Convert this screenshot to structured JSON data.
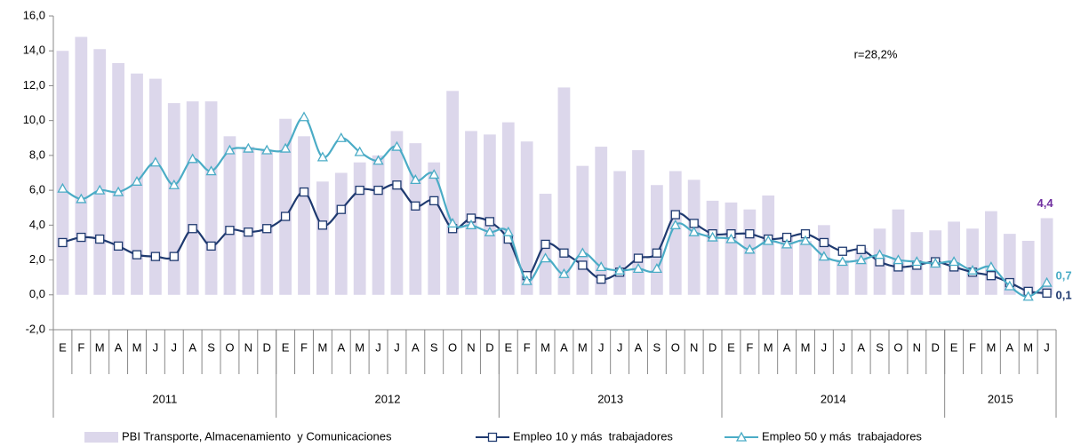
{
  "chart_data": {
    "type": "bar",
    "annotation": "r=28,2%",
    "categories": [
      "E",
      "F",
      "M",
      "A",
      "M",
      "J",
      "J",
      "A",
      "S",
      "O",
      "N",
      "D",
      "E",
      "F",
      "M",
      "A",
      "M",
      "J",
      "J",
      "A",
      "S",
      "O",
      "N",
      "D",
      "E",
      "F",
      "M",
      "A",
      "M",
      "J",
      "J",
      "A",
      "S",
      "O",
      "N",
      "D",
      "E",
      "F",
      "M",
      "A",
      "M",
      "J",
      "J",
      "A",
      "S",
      "O",
      "N",
      "D",
      "E",
      "F",
      "M",
      "A",
      "M",
      "J"
    ],
    "groups": [
      {
        "label": "2011",
        "months": 12
      },
      {
        "label": "2012",
        "months": 12
      },
      {
        "label": "2013",
        "months": 12
      },
      {
        "label": "2014",
        "months": 12
      },
      {
        "label": "2015",
        "months": 6
      }
    ],
    "ylim": [
      -2,
      16
    ],
    "yticks": [
      {
        "value": -2,
        "label": "-2,0"
      },
      {
        "value": 0,
        "label": "0,0"
      },
      {
        "value": 2,
        "label": "2,0"
      },
      {
        "value": 4,
        "label": "4,0"
      },
      {
        "value": 6,
        "label": "6,0"
      },
      {
        "value": 8,
        "label": "8,0"
      },
      {
        "value": 10,
        "label": "10,0"
      },
      {
        "value": 12,
        "label": "12,0"
      },
      {
        "value": 14,
        "label": "14,0"
      },
      {
        "value": 16,
        "label": "16,0"
      }
    ],
    "grid": false,
    "legend": "bottom",
    "series": [
      {
        "name": "PBI Transporte, Almacenamiento  y Comunicaciones",
        "type": "bar",
        "color": "#dcd7eb",
        "label_color": "#7030a0",
        "values": [
          14.0,
          14.8,
          14.1,
          13.3,
          12.7,
          12.4,
          11.0,
          11.1,
          11.1,
          9.1,
          8.5,
          8.3,
          10.1,
          9.1,
          6.5,
          7.0,
          7.6,
          8.0,
          9.4,
          8.7,
          7.6,
          11.7,
          9.4,
          9.2,
          9.9,
          8.8,
          5.8,
          11.9,
          7.4,
          8.5,
          7.1,
          8.3,
          6.3,
          7.1,
          6.6,
          5.4,
          5.3,
          4.9,
          5.7,
          3.4,
          3.1,
          4.0,
          2.0,
          2.7,
          3.8,
          4.9,
          3.6,
          3.7,
          4.2,
          3.8,
          4.8,
          3.5,
          3.1,
          4.4
        ],
        "value_labels": {
          "53": "4,4"
        }
      },
      {
        "name": "Empleo 10 y más  trabajadores",
        "type": "line",
        "marker": "square",
        "color": "#1f3a70",
        "label_color": "#1f3a70",
        "values": [
          3.0,
          3.3,
          3.2,
          2.8,
          2.3,
          2.2,
          2.2,
          3.8,
          2.8,
          3.7,
          3.6,
          3.8,
          4.5,
          5.9,
          4.0,
          4.9,
          6.0,
          6.0,
          6.3,
          5.1,
          5.4,
          3.8,
          4.4,
          4.2,
          3.2,
          1.1,
          2.9,
          2.4,
          1.7,
          0.9,
          1.3,
          2.1,
          2.4,
          4.6,
          4.1,
          3.5,
          3.5,
          3.5,
          3.2,
          3.3,
          3.5,
          3.0,
          2.5,
          2.6,
          1.9,
          1.6,
          1.7,
          1.9,
          1.6,
          1.3,
          1.1,
          0.7,
          0.2,
          0.1
        ],
        "value_labels": {
          "53": "0,1"
        }
      },
      {
        "name": "Empleo 50 y más  trabajadores",
        "type": "line",
        "marker": "triangle",
        "color": "#4bacc6",
        "label_color": "#4bacc6",
        "values": [
          6.1,
          5.5,
          6.0,
          5.9,
          6.5,
          7.6,
          6.3,
          7.8,
          7.1,
          8.3,
          8.4,
          8.3,
          8.4,
          10.2,
          7.9,
          9.0,
          8.2,
          7.7,
          8.5,
          6.6,
          6.9,
          4.1,
          4.0,
          3.6,
          3.6,
          0.8,
          2.1,
          1.2,
          2.4,
          1.6,
          1.4,
          1.5,
          1.5,
          4.0,
          3.6,
          3.3,
          3.2,
          2.6,
          3.1,
          2.9,
          3.1,
          2.2,
          1.9,
          2.0,
          2.3,
          2.0,
          1.9,
          1.8,
          1.9,
          1.4,
          1.6,
          0.5,
          -0.1,
          0.7
        ],
        "value_labels": {
          "53": "0,7"
        }
      }
    ]
  }
}
